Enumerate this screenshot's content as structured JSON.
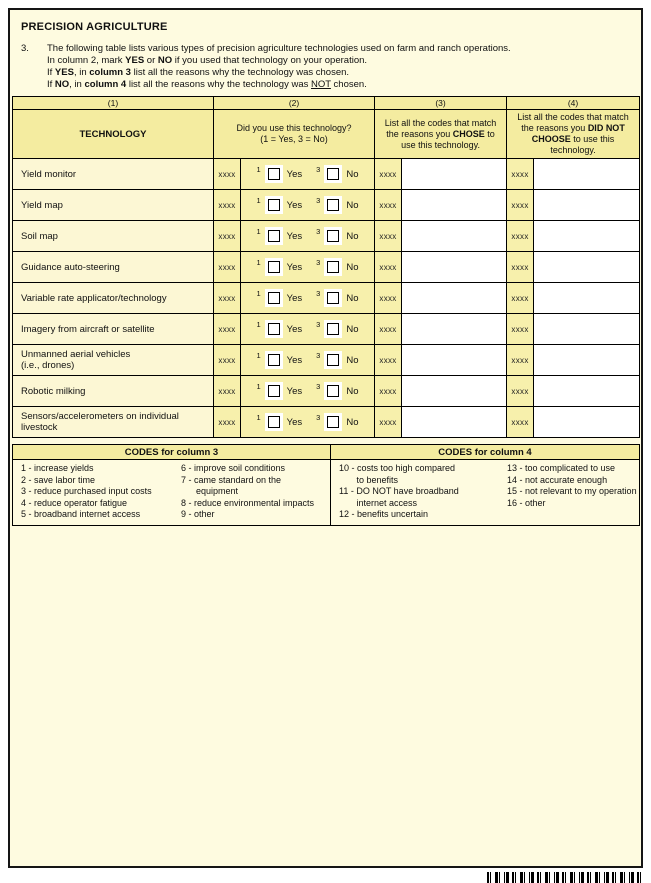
{
  "header": {
    "title": "PRECISION AGRICULTURE",
    "question_number": "3.",
    "line1": "The following table lists various types of precision agriculture technologies used on farm and ranch operations.",
    "line2": {
      "t1": "In column 2, mark ",
      "b1": "YES",
      "t2": " or ",
      "b2": "NO",
      "t3": " if you used that technology on your operation."
    },
    "line3": {
      "t1": "If ",
      "b1": "YES",
      "t2": ", in ",
      "b2": "column 3",
      "t3": " list all the reasons why the technology was chosen."
    },
    "line4": {
      "t1": "If ",
      "b1": "NO",
      "t2": ", in ",
      "b2": "column 4",
      "t3": " list all the reasons why the technology was ",
      "u1": "NOT",
      "t4": " chosen."
    }
  },
  "table": {
    "column_numbers": [
      "(1)",
      "(2)",
      "(3)",
      "(4)"
    ],
    "col1_header": "TECHNOLOGY",
    "col2_header": {
      "line1": "Did you use this technology?",
      "line2": "(1 = Yes, 3 = No)"
    },
    "col3_header": {
      "t1": "List all the codes that match the reasons you ",
      "b1": "CHOSE",
      "t2": " to use this technology."
    },
    "col4_header": {
      "t1": "List all the codes that match the reasons you ",
      "b1": "DID NOT CHOOSE",
      "t2": " to use this technology."
    },
    "office_code": "xxxx",
    "yes_value": "1",
    "yes_label": "Yes",
    "no_value": "3",
    "no_label": "No",
    "rows": [
      "Yield monitor",
      "Yield map",
      "Soil map",
      "Guidance auto-steering",
      "Variable rate applicator/technology",
      "Imagery from aircraft or satellite",
      "Unmanned aerial vehicles\n(i.e., drones)",
      "Robotic milking",
      "Sensors/accelerometers on individual\nlivestock"
    ]
  },
  "codes": {
    "col3_title": "CODES for column 3",
    "col4_title": "CODES for column 4",
    "col3_list_a": [
      "1 - increase yields",
      "2 - save labor time",
      "3 - reduce purchased input costs",
      "4 - reduce operator fatigue",
      "5 - broadband internet access"
    ],
    "col3_list_b": [
      "6 - improve soil conditions",
      "7 - came standard on the\n      equipment",
      "8 - reduce environmental impacts",
      "9 - other"
    ],
    "col4_list_a": [
      "10 - costs too high compared\n       to benefits",
      "11 - DO NOT have broadband\n       internet access",
      "12 - benefits uncertain"
    ],
    "col4_list_b": [
      "13 - too complicated to use",
      "14 - not accurate enough",
      "15 - not relevant to my operation",
      "16 - other"
    ]
  },
  "colors": {
    "page_bg": "#FEFBE0",
    "header_cell_bg": "#F4ECA0",
    "row_cell_bg": "#F7F0AC",
    "tech_cell_bg": "#FCF7D4",
    "answer_bg": "#FFFFFF",
    "border": "#000000"
  }
}
